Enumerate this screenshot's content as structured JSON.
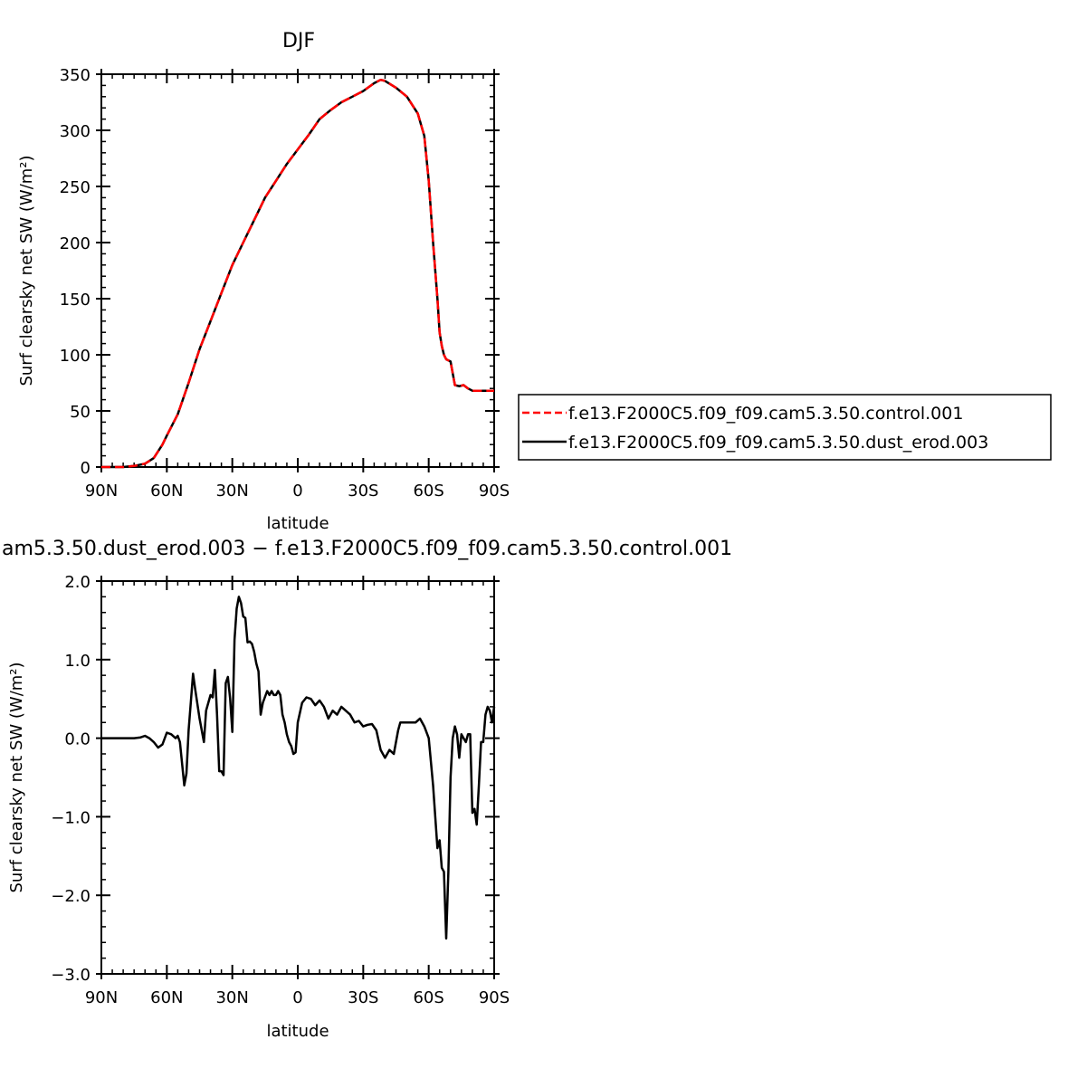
{
  "chart_data": [
    {
      "type": "line",
      "title": "DJF",
      "xlabel": "latitude",
      "ylabel": "Surf clearsky net SW (W/m²)",
      "xlim": [
        90,
        -90
      ],
      "ylim": [
        0,
        350
      ],
      "xticks": [
        90,
        60,
        30,
        0,
        -30,
        -60,
        -90
      ],
      "xtick_labels": [
        "90N",
        "60N",
        "30N",
        "0",
        "30S",
        "60S",
        "90S"
      ],
      "yticks": [
        0,
        50,
        100,
        150,
        200,
        250,
        300,
        350
      ],
      "ytick_labels": [
        "0",
        "50",
        "100",
        "150",
        "200",
        "250",
        "300",
        "350"
      ],
      "grid": false,
      "legend_position": "right",
      "series": [
        {
          "name": "f.e13.F2000C5.f09_f09.cam5.3.50.control.001",
          "color": "#ff0000",
          "dash": "dashed",
          "x": [
            90,
            80,
            75,
            70,
            66,
            62,
            60,
            55,
            50,
            45,
            40,
            35,
            30,
            25,
            20,
            15,
            10,
            5,
            0,
            -5,
            -10,
            -15,
            -20,
            -25,
            -30,
            -35,
            -38,
            -40,
            -45,
            -50,
            -55,
            -58,
            -60,
            -62,
            -64,
            -65,
            -66,
            -67,
            -68,
            -70,
            -72,
            -74,
            -76,
            -78,
            -80,
            -82,
            -84,
            -86,
            -88,
            -90
          ],
          "y": [
            0,
            0,
            1,
            3,
            8,
            20,
            28,
            47,
            75,
            105,
            130,
            155,
            180,
            200,
            220,
            240,
            255,
            270,
            283,
            296,
            310,
            318,
            325,
            330,
            335,
            342,
            345,
            344,
            338,
            330,
            315,
            295,
            255,
            200,
            150,
            120,
            108,
            100,
            96,
            94,
            73,
            72,
            73,
            70,
            68,
            68,
            68,
            68,
            68,
            68
          ]
        },
        {
          "name": "f.e13.F2000C5.f09_f09.cam5.3.50.dust_erod.003",
          "color": "#000000",
          "dash": "solid",
          "x": [
            90,
            80,
            75,
            70,
            66,
            62,
            60,
            55,
            50,
            45,
            40,
            35,
            30,
            25,
            20,
            15,
            10,
            5,
            0,
            -5,
            -10,
            -15,
            -20,
            -25,
            -30,
            -35,
            -38,
            -40,
            -45,
            -50,
            -55,
            -58,
            -60,
            -62,
            -64,
            -65,
            -66,
            -67,
            -68,
            -70,
            -72,
            -74,
            -76,
            -78,
            -80,
            -82,
            -84,
            -86,
            -88,
            -90
          ],
          "y": [
            0,
            0,
            1,
            3,
            8,
            20,
            28,
            47,
            75,
            105,
            130,
            155,
            180,
            200,
            220,
            240,
            255,
            270,
            283,
            296,
            310,
            318,
            325,
            330,
            335,
            342,
            345,
            344,
            338,
            330,
            315,
            295,
            255,
            200,
            150,
            120,
            108,
            100,
            96,
            94,
            73,
            72,
            73,
            70,
            68,
            68,
            68,
            68,
            68,
            68
          ]
        }
      ]
    },
    {
      "type": "line",
      "title": "am5.3.50.dust_erod.003 − f.e13.F2000C5.f09_f09.cam5.3.50.control.001",
      "xlabel": "latitude",
      "ylabel": "Surf clearsky net SW (W/m²)",
      "xlim": [
        90,
        -90
      ],
      "ylim": [
        -3.0,
        2.0
      ],
      "xticks": [
        90,
        60,
        30,
        0,
        -30,
        -60,
        -90
      ],
      "xtick_labels": [
        "90N",
        "60N",
        "30N",
        "0",
        "30S",
        "60S",
        "90S"
      ],
      "yticks": [
        2.0,
        1.0,
        0.0,
        -1.0,
        -2.0,
        -3.0
      ],
      "ytick_labels": [
        "2.0",
        "1.0",
        "0.0",
        "−1.0",
        "−2.0",
        "−3.0"
      ],
      "grid": false,
      "series": [
        {
          "color": "#000000",
          "dash": "solid",
          "x": [
            90,
            75,
            72,
            70,
            68,
            66,
            64,
            62,
            60,
            58,
            56,
            55,
            54,
            52,
            51,
            50,
            48,
            47,
            45,
            44,
            43,
            42,
            40,
            39,
            38,
            37,
            36,
            35,
            34,
            33,
            32,
            31,
            30,
            29,
            28,
            27,
            26,
            25,
            24,
            23,
            22,
            21,
            20,
            19,
            18,
            17,
            16,
            14,
            13,
            12,
            11,
            10,
            9,
            8,
            7,
            6,
            5,
            4,
            3,
            2,
            1,
            0,
            -2,
            -4,
            -6,
            -8,
            -10,
            -12,
            -14,
            -16,
            -18,
            -20,
            -22,
            -24,
            -26,
            -28,
            -30,
            -32,
            -34,
            -36,
            -38,
            -40,
            -42,
            -44,
            -46,
            -47,
            -48,
            -50,
            -52,
            -54,
            -56,
            -58,
            -60,
            -61,
            -62,
            -63,
            -64,
            -65,
            -66,
            -67,
            -68,
            -69,
            -70,
            -71,
            -72,
            -73,
            -74,
            -75,
            -76,
            -77,
            -78,
            -79,
            -80,
            -81,
            -82,
            -83,
            -84,
            -85,
            -86,
            -87,
            -88,
            -89,
            -90
          ],
          "y": [
            0.0,
            0.0,
            0.01,
            0.03,
            0.0,
            -0.05,
            -0.12,
            -0.08,
            0.07,
            0.05,
            0.0,
            0.03,
            -0.05,
            -0.6,
            -0.45,
            0.1,
            0.82,
            0.62,
            0.25,
            0.1,
            -0.05,
            0.35,
            0.55,
            0.52,
            0.87,
            0.3,
            -0.42,
            -0.42,
            -0.47,
            0.7,
            0.78,
            0.5,
            0.08,
            1.25,
            1.65,
            1.8,
            1.72,
            1.55,
            1.53,
            1.22,
            1.23,
            1.2,
            1.1,
            0.95,
            0.85,
            0.3,
            0.45,
            0.6,
            0.55,
            0.6,
            0.55,
            0.55,
            0.6,
            0.55,
            0.3,
            0.2,
            0.05,
            -0.05,
            -0.1,
            -0.2,
            -0.18,
            0.2,
            0.45,
            0.52,
            0.5,
            0.42,
            0.48,
            0.4,
            0.25,
            0.35,
            0.3,
            0.4,
            0.35,
            0.3,
            0.2,
            0.22,
            0.15,
            0.17,
            0.18,
            0.1,
            -0.15,
            -0.25,
            -0.15,
            -0.2,
            0.1,
            0.2,
            0.2,
            0.2,
            0.2,
            0.2,
            0.25,
            0.15,
            0.0,
            -0.3,
            -0.6,
            -1.0,
            -1.4,
            -1.3,
            -1.65,
            -1.7,
            -2.55,
            -1.7,
            -0.5,
            0.0,
            0.15,
            0.05,
            -0.25,
            0.05,
            0.0,
            -0.05,
            0.05,
            0.05,
            -0.95,
            -0.9,
            -1.1,
            -0.6,
            -0.05,
            -0.05,
            0.3,
            0.4,
            0.35,
            0.2,
            0.4
          ]
        }
      ]
    }
  ]
}
